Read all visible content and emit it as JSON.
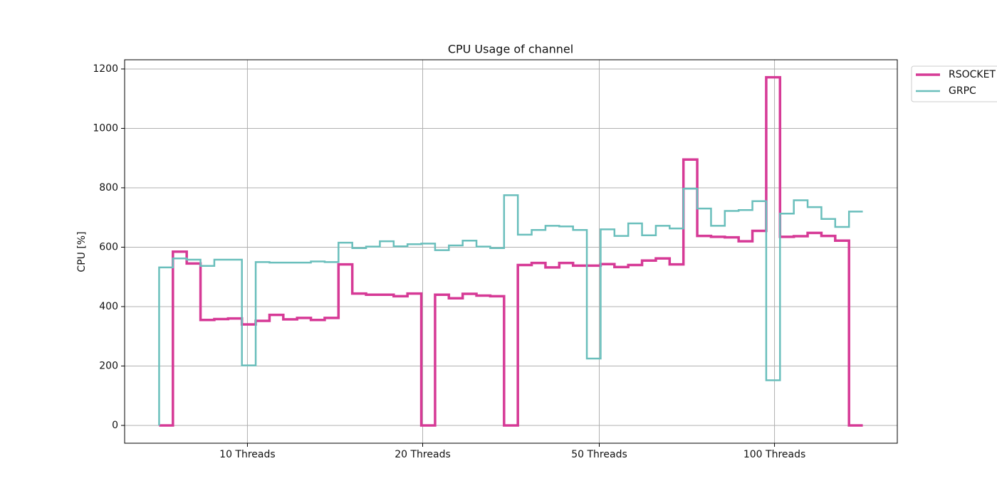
{
  "chart_data": {
    "type": "step",
    "title": "CPU Usage of channel",
    "ylabel": "CPU [%]",
    "x": [
      0,
      1,
      2,
      3,
      4,
      5,
      6,
      7,
      8,
      9,
      10,
      11,
      12,
      13,
      14,
      15,
      16,
      17,
      18,
      19,
      20,
      21,
      22,
      23,
      24,
      25,
      26,
      27,
      28,
      29,
      30,
      31,
      32,
      33,
      34,
      35,
      36,
      37,
      38,
      39,
      40,
      41,
      42,
      43,
      44,
      45,
      46,
      47,
      48,
      49,
      50,
      51
    ],
    "series": [
      {
        "name": "RSOCKET",
        "color": "#d63a96",
        "values": [
          0,
          0,
          585,
          545,
          355,
          358,
          360,
          340,
          352,
          372,
          357,
          362,
          355,
          362,
          542,
          444,
          440,
          440,
          435,
          444,
          0,
          440,
          428,
          443,
          437,
          435,
          0,
          540,
          547,
          532,
          547,
          538,
          538,
          543,
          533,
          540,
          555,
          562,
          542,
          895,
          638,
          635,
          633,
          620,
          655,
          1172,
          635,
          637,
          648,
          638,
          622,
          0
        ]
      },
      {
        "name": "GRPC",
        "color": "#6abfbc",
        "values": [
          0,
          532,
          562,
          558,
          537,
          558,
          558,
          202,
          550,
          548,
          548,
          548,
          552,
          550,
          615,
          597,
          602,
          620,
          603,
          610,
          612,
          590,
          606,
          622,
          602,
          597,
          775,
          642,
          658,
          672,
          670,
          658,
          225,
          660,
          638,
          680,
          640,
          672,
          663,
          797,
          730,
          672,
          722,
          725,
          755,
          152,
          713,
          758,
          735,
          695,
          668,
          720
        ]
      }
    ],
    "xlim": [
      -2.5,
      53.5
    ],
    "xticks": [
      {
        "value": 6.4,
        "label": "10 Threads"
      },
      {
        "value": 19.1,
        "label": "20 Threads"
      },
      {
        "value": 31.9,
        "label": "50 Threads"
      },
      {
        "value": 44.6,
        "label": "100 Threads"
      }
    ],
    "ylim": [
      -60,
      1231
    ],
    "yticks": [
      0,
      200,
      400,
      600,
      800,
      1000,
      1200
    ],
    "grid": true,
    "step_where": "pre",
    "legend": "outside upper right"
  }
}
